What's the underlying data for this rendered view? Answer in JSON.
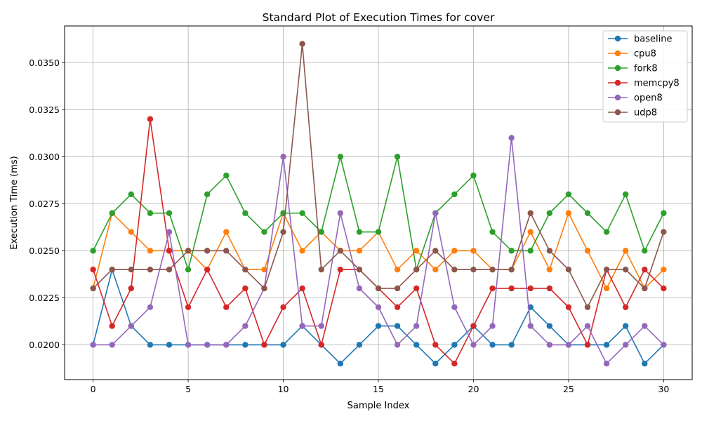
{
  "chart_data": {
    "type": "line",
    "title": "Standard Plot of Execution Times for cover",
    "xlabel": "Sample Index",
    "ylabel": "Execution Time (ms)",
    "xlim": [
      -1.5,
      31.5
    ],
    "ylim": [
      0.01815,
      0.03695
    ],
    "x_ticks": [
      0,
      5,
      10,
      15,
      20,
      25,
      30
    ],
    "x_tick_labels": [
      "0",
      "5",
      "10",
      "15",
      "20",
      "25",
      "30"
    ],
    "y_ticks": [
      0.02,
      0.0225,
      0.025,
      0.0275,
      0.03,
      0.0325,
      0.035
    ],
    "y_tick_labels": [
      "0.0200",
      "0.0225",
      "0.0250",
      "0.0275",
      "0.0300",
      "0.0325",
      "0.0350"
    ],
    "grid": true,
    "legend_position": "top-right",
    "x": [
      0,
      1,
      2,
      3,
      4,
      5,
      6,
      7,
      8,
      9,
      10,
      11,
      12,
      13,
      14,
      15,
      16,
      17,
      18,
      19,
      20,
      21,
      22,
      23,
      24,
      25,
      26,
      27,
      28,
      29,
      30
    ],
    "series": [
      {
        "name": "baseline",
        "color": "#1f77b4",
        "values": [
          0.02,
          0.024,
          0.021,
          0.02,
          0.02,
          0.02,
          0.02,
          0.02,
          0.02,
          0.02,
          0.02,
          0.021,
          0.02,
          0.019,
          0.02,
          0.021,
          0.021,
          0.02,
          0.019,
          0.02,
          0.021,
          0.02,
          0.02,
          0.022,
          0.021,
          0.02,
          0.02,
          0.02,
          0.021,
          0.019,
          0.02
        ]
      },
      {
        "name": "cpu8",
        "color": "#ff7f0e",
        "values": [
          0.023,
          0.027,
          0.026,
          0.025,
          0.025,
          0.025,
          0.024,
          0.026,
          0.024,
          0.024,
          0.027,
          0.025,
          0.026,
          0.025,
          0.025,
          0.026,
          0.024,
          0.025,
          0.024,
          0.025,
          0.025,
          0.024,
          0.024,
          0.026,
          0.024,
          0.027,
          0.025,
          0.023,
          0.025,
          0.023,
          0.024
        ]
      },
      {
        "name": "fork8",
        "color": "#2ca02c",
        "values": [
          0.025,
          0.027,
          0.028,
          0.027,
          0.027,
          0.024,
          0.028,
          0.029,
          0.027,
          0.026,
          0.027,
          0.027,
          0.026,
          0.03,
          0.026,
          0.026,
          0.03,
          0.024,
          0.027,
          0.028,
          0.029,
          0.026,
          0.025,
          0.025,
          0.027,
          0.028,
          0.027,
          0.026,
          0.028,
          0.025,
          0.027
        ]
      },
      {
        "name": "memcpy8",
        "color": "#d62728",
        "values": [
          0.024,
          0.021,
          0.023,
          0.032,
          0.025,
          0.022,
          0.024,
          0.022,
          0.023,
          0.02,
          0.022,
          0.023,
          0.02,
          0.024,
          0.024,
          0.023,
          0.022,
          0.023,
          0.02,
          0.019,
          0.021,
          0.023,
          0.023,
          0.023,
          0.023,
          0.022,
          0.02,
          0.024,
          0.022,
          0.024,
          0.023
        ]
      },
      {
        "name": "open8",
        "color": "#9467bd",
        "values": [
          0.02,
          0.02,
          0.021,
          0.022,
          0.026,
          0.02,
          0.02,
          0.02,
          0.021,
          0.023,
          0.03,
          0.021,
          0.021,
          0.027,
          0.023,
          0.022,
          0.02,
          0.021,
          0.027,
          0.022,
          0.02,
          0.021,
          0.031,
          0.021,
          0.02,
          0.02,
          0.021,
          0.019,
          0.02,
          0.021,
          0.02
        ]
      },
      {
        "name": "udp8",
        "color": "#8c564b",
        "values": [
          0.023,
          0.024,
          0.024,
          0.024,
          0.024,
          0.025,
          0.025,
          0.025,
          0.024,
          0.023,
          0.026,
          0.036,
          0.024,
          0.025,
          0.024,
          0.023,
          0.023,
          0.024,
          0.025,
          0.024,
          0.024,
          0.024,
          0.024,
          0.027,
          0.025,
          0.024,
          0.022,
          0.024,
          0.024,
          0.023,
          0.026
        ]
      }
    ]
  }
}
